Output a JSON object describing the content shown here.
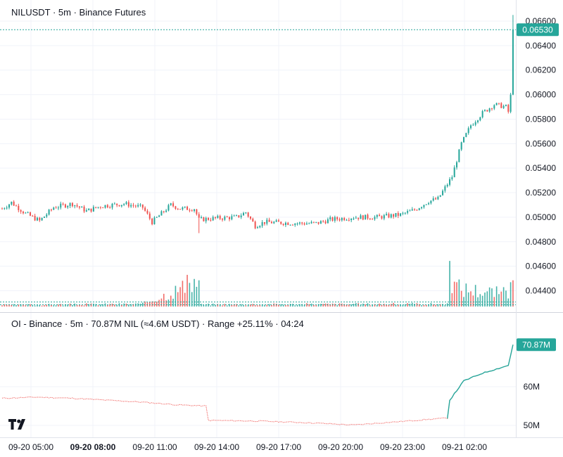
{
  "header": {
    "main_legend": "NILUSDT · 5m · Binance Futures",
    "oi_legend": "OI - Binance · 5m · 70.87M NIL (≈4.6M USDT) · Range +25.11% · 04:24"
  },
  "logo": {
    "icon": "tradingview-logo-icon"
  },
  "colors": {
    "up": "#26a69a",
    "down": "#ef5350",
    "grid": "#f0f3fa",
    "axis_text": "#131722",
    "price_tag_bg": "#26a69a"
  },
  "chart_data": [
    {
      "type": "candlestick",
      "symbol": "NILUSDT",
      "interval": "5m",
      "exchange": "Binance Futures",
      "x_tick_labels": [
        "09-20 05:00",
        "09-20 08:00",
        "09-20 11:00",
        "09-20 14:00",
        "09-20 17:00",
        "09-20 20:00",
        "09-20 23:00",
        "09-21 02:00"
      ],
      "x_tick_bold": [
        false,
        true,
        false,
        false,
        false,
        false,
        false,
        false
      ],
      "y_tick_labels": [
        "0.06600",
        "0.06400",
        "0.06200",
        "0.06000",
        "0.05800",
        "0.05600",
        "0.05400",
        "0.05200",
        "0.05000",
        "0.04800",
        "0.04600",
        "0.04400"
      ],
      "ylim": [
        0.0425,
        0.0664
      ],
      "last_price": 0.0653,
      "last_price_label": "0.06530",
      "grid": true,
      "price_anchors": [
        {
          "i": 0,
          "p": 0.0507
        },
        {
          "i": 4,
          "p": 0.0512
        },
        {
          "i": 10,
          "p": 0.0503
        },
        {
          "i": 16,
          "p": 0.0497
        },
        {
          "i": 22,
          "p": 0.0508
        },
        {
          "i": 30,
          "p": 0.0511
        },
        {
          "i": 36,
          "p": 0.0505
        },
        {
          "i": 42,
          "p": 0.0509
        },
        {
          "i": 52,
          "p": 0.0511
        },
        {
          "i": 60,
          "p": 0.0508
        },
        {
          "i": 64,
          "p": 0.0496
        },
        {
          "i": 68,
          "p": 0.0503
        },
        {
          "i": 72,
          "p": 0.051
        },
        {
          "i": 76,
          "p": 0.0507
        },
        {
          "i": 82,
          "p": 0.0507
        },
        {
          "i": 84,
          "p": 0.0498
        },
        {
          "i": 90,
          "p": 0.0499
        },
        {
          "i": 100,
          "p": 0.05
        },
        {
          "i": 104,
          "p": 0.0504
        },
        {
          "i": 108,
          "p": 0.0493
        },
        {
          "i": 112,
          "p": 0.0496
        },
        {
          "i": 126,
          "p": 0.0495
        },
        {
          "i": 134,
          "p": 0.0495
        },
        {
          "i": 140,
          "p": 0.0498
        },
        {
          "i": 150,
          "p": 0.05
        },
        {
          "i": 160,
          "p": 0.05
        },
        {
          "i": 170,
          "p": 0.0502
        },
        {
          "i": 176,
          "p": 0.0506
        },
        {
          "i": 182,
          "p": 0.0513
        },
        {
          "i": 186,
          "p": 0.0515
        },
        {
          "i": 192,
          "p": 0.0533
        },
        {
          "i": 196,
          "p": 0.056
        },
        {
          "i": 200,
          "p": 0.0575
        },
        {
          "i": 205,
          "p": 0.0585
        },
        {
          "i": 210,
          "p": 0.0592
        },
        {
          "i": 215,
          "p": 0.059
        },
        {
          "i": 216,
          "p": 0.0586
        },
        {
          "i": 217,
          "p": 0.0599
        },
        {
          "i": 218,
          "p": 0.0653
        }
      ],
      "volume_anchors": [
        {
          "i": 0,
          "v": 0.06
        },
        {
          "i": 60,
          "v": 0.1
        },
        {
          "i": 84,
          "v": 1.0
        },
        {
          "i": 85,
          "v": 0.08
        },
        {
          "i": 190,
          "v": 0.1
        },
        {
          "i": 191,
          "v": 1.2
        },
        {
          "i": 192,
          "v": 0.9
        },
        {
          "i": 196,
          "v": 0.7
        },
        {
          "i": 205,
          "v": 0.6
        },
        {
          "i": 216,
          "v": 0.5
        },
        {
          "i": 217,
          "v": 1.4
        },
        {
          "i": 218,
          "v": 2.0
        }
      ]
    },
    {
      "type": "line",
      "name": "OI - Binance",
      "y_tick_labels": [
        "60M",
        "50M"
      ],
      "ylim": [
        46.5,
        75.0
      ],
      "last_value": 70.87,
      "last_value_label": "70.87M",
      "anchors": [
        {
          "i": 0,
          "v": 57.0
        },
        {
          "i": 15,
          "v": 57.3
        },
        {
          "i": 30,
          "v": 57.0
        },
        {
          "i": 45,
          "v": 56.5
        },
        {
          "i": 60,
          "v": 56.0
        },
        {
          "i": 75,
          "v": 55.3
        },
        {
          "i": 87,
          "v": 55.0
        },
        {
          "i": 88,
          "v": 51.3
        },
        {
          "i": 110,
          "v": 51.1
        },
        {
          "i": 130,
          "v": 50.7
        },
        {
          "i": 150,
          "v": 50.1
        },
        {
          "i": 170,
          "v": 51.0
        },
        {
          "i": 190,
          "v": 51.9
        },
        {
          "i": 191,
          "v": 56.5
        },
        {
          "i": 197,
          "v": 61.5
        },
        {
          "i": 205,
          "v": 63.5
        },
        {
          "i": 216,
          "v": 65.5
        },
        {
          "i": 218,
          "v": 70.87
        }
      ]
    }
  ]
}
